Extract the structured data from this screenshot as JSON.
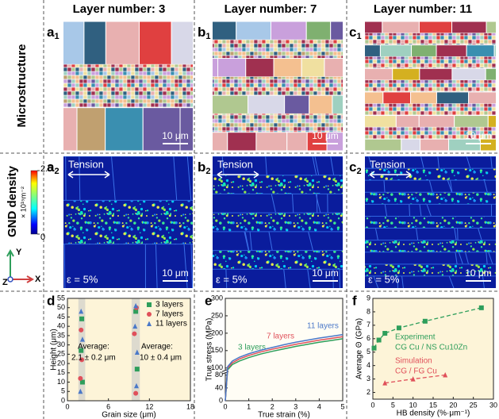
{
  "columns": [
    "Layer number: 3",
    "Layer number: 7",
    "Layer number: 11"
  ],
  "row_labels": [
    "Microstructure",
    "GND density"
  ],
  "panels": [
    {
      "letter": "a",
      "sub": "1"
    },
    {
      "letter": "b",
      "sub": "1"
    },
    {
      "letter": "c",
      "sub": "1"
    },
    {
      "letter": "a",
      "sub": "2"
    },
    {
      "letter": "b",
      "sub": "2"
    },
    {
      "letter": "c",
      "sub": "2"
    }
  ],
  "layers": [
    3,
    7,
    11
  ],
  "scale_bar": "10 μm",
  "tension": "Tension",
  "strain_label": "ε = 5%",
  "colorbar": {
    "title": "GND density",
    "ticks": [
      2.5,
      0
    ],
    "unit": "× 10¹⁵m⁻²"
  },
  "axes_triad": [
    "Y",
    "Z",
    "X"
  ],
  "chart_data": [
    {
      "type": "scatter",
      "panel": "d",
      "xlabel": "Grain size (μm)",
      "ylabel": "Height (μm)",
      "xlim": [
        0,
        18
      ],
      "xticks": [
        0,
        6,
        12,
        18
      ],
      "ylim": [
        0,
        55
      ],
      "yticks": [
        0,
        5,
        10,
        15,
        20,
        25,
        30,
        35,
        40,
        45,
        50,
        55
      ],
      "background": "#fdf4d8",
      "bands": [
        [
          1.6,
          2.6
        ],
        [
          9.4,
          10.6
        ]
      ],
      "annotations": [
        "Average:",
        "2.1 ± 0.2 μm",
        "Average:",
        "10 ± 0.4 μm"
      ],
      "series": [
        {
          "name": "3 layers",
          "color": "#2e9e5b",
          "marker": "square",
          "x": [
            2.1,
            2.0,
            2.2,
            10.0,
            10.2
          ],
          "y": [
            44,
            27,
            10,
            48,
            17
          ]
        },
        {
          "name": "7 layers",
          "color": "#e0505a",
          "marker": "circle",
          "x": [
            2.0,
            2.1,
            1.9,
            10.1,
            9.8,
            10.0
          ],
          "y": [
            38,
            22,
            12,
            50,
            36,
            4
          ]
        },
        {
          "name": "11 layers",
          "color": "#4a78c8",
          "marker": "triangle",
          "x": [
            2.0,
            2.2,
            1.9,
            10.0,
            9.9,
            10.2,
            10.1
          ],
          "y": [
            48,
            33,
            5,
            51,
            40,
            26,
            8
          ]
        }
      ]
    },
    {
      "type": "line",
      "panel": "e",
      "xlabel": "True strain (%)",
      "ylabel": "True stress (MPa)",
      "xlim": [
        0,
        5
      ],
      "xticks": [
        0,
        1,
        2,
        3,
        4,
        5
      ],
      "ylim": [
        0,
        300
      ],
      "yticks": [
        0,
        40,
        80,
        100,
        150,
        200,
        250,
        300
      ],
      "ybreak": [
        80,
        100
      ],
      "background": "#fffdf5",
      "x": [
        0,
        0.1,
        0.3,
        0.6,
        1,
        1.5,
        2,
        2.5,
        3,
        3.5,
        4,
        4.5,
        5
      ],
      "series": [
        {
          "name": "3 layers",
          "color": "#2e9e5b",
          "values": [
            0,
            95,
            110,
            120,
            130,
            140,
            148,
            155,
            162,
            168,
            174,
            179,
            184
          ]
        },
        {
          "name": "7 layers",
          "color": "#e0505a",
          "values": [
            0,
            100,
            115,
            126,
            136,
            146,
            154,
            161,
            168,
            174,
            180,
            185,
            190
          ]
        },
        {
          "name": "11 layers",
          "color": "#4a78c8",
          "values": [
            0,
            104,
            120,
            131,
            141,
            151,
            159,
            167,
            174,
            180,
            186,
            191,
            196
          ]
        }
      ]
    },
    {
      "type": "scatter",
      "panel": "f",
      "xlabel": "HB density (%·μm⁻¹)",
      "ylabel": "Average Θ (GPa)",
      "xlim": [
        0,
        30
      ],
      "xticks": [
        0,
        5,
        10,
        15,
        20,
        25,
        30
      ],
      "ylim": [
        1.5,
        9
      ],
      "yticks": [
        2,
        3,
        4,
        5,
        6,
        7,
        8,
        9
      ],
      "background": "#fdf4d8",
      "fit_lines": true,
      "series": [
        {
          "name": "Experiment",
          "note": "CG Cu / NS Cu10Zn",
          "color": "#2e9e5b",
          "marker": "square",
          "x": [
            0.3,
            1.5,
            3,
            6.5,
            13,
            27
          ],
          "y": [
            5.3,
            5.9,
            6.4,
            6.8,
            7.3,
            8.3
          ]
        },
        {
          "name": "Simulation",
          "note": "CG / FG Cu",
          "color": "#e0505a",
          "marker": "triangle",
          "x": [
            3,
            10,
            18
          ],
          "y": [
            2.7,
            3.0,
            3.3
          ]
        }
      ]
    }
  ]
}
